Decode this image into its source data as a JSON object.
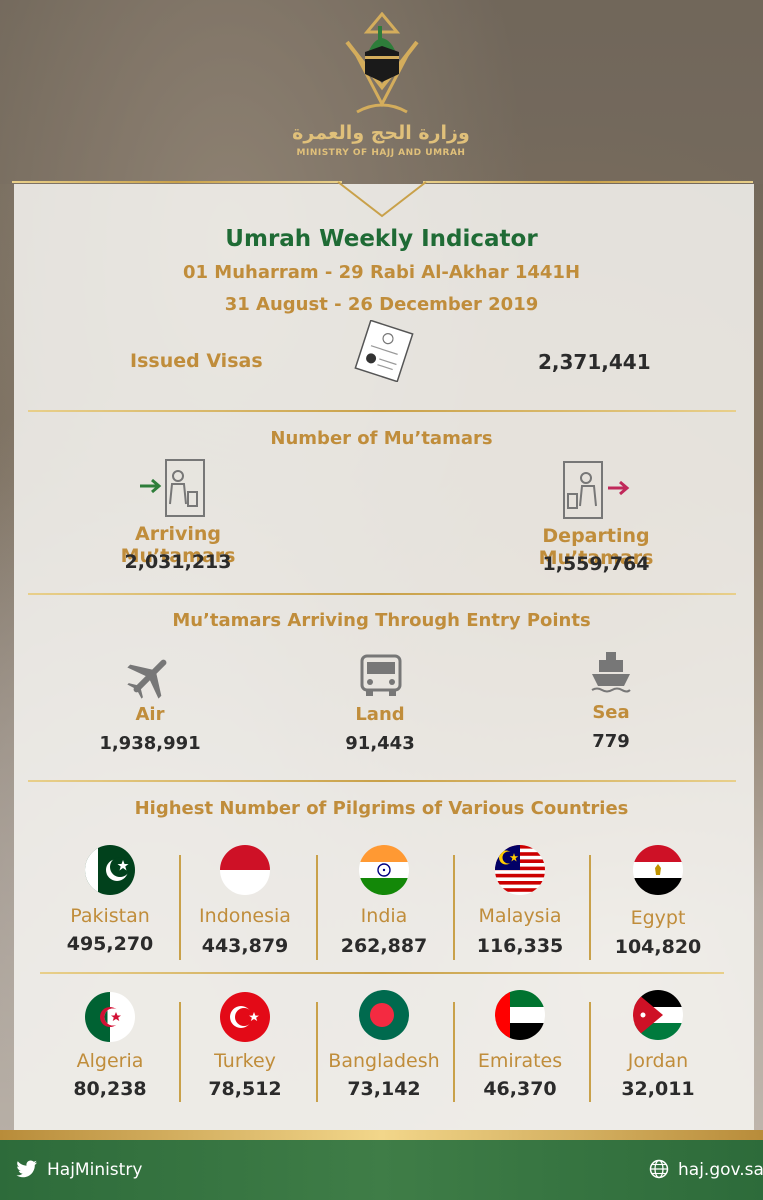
{
  "header": {
    "logo_arabic": "وزارة الحج والعمرة",
    "logo_english": "MINISTRY OF HAJJ AND UMRAH"
  },
  "report": {
    "title": "Umrah Weekly Indicator",
    "hijri_range": "01 Muharram - 29 Rabi Al-Akhar 1441H",
    "gregorian_range": "31 August - 26 December 2019"
  },
  "visas": {
    "label": "Issued Visas",
    "value": "2,371,441",
    "icon": "passport-icon"
  },
  "mutamars": {
    "heading": "Number of Mu’tamars",
    "arriving_label": "Arriving Mu’tamars",
    "arriving_value": "2,031,213",
    "departing_label": "Departing Mu’tamars",
    "departing_value": "1,559,764"
  },
  "entry_points": {
    "heading": "Mu’tamars Arriving Through Entry Points",
    "items": [
      {
        "label": "Air",
        "value": "1,938,991",
        "icon": "airplane-icon"
      },
      {
        "label": "Land",
        "value": "91,443",
        "icon": "bus-icon"
      },
      {
        "label": "Sea",
        "value": "779",
        "icon": "ship-icon"
      }
    ]
  },
  "countries": {
    "heading": "Highest Number of Pilgrims of Various Countries",
    "row1": [
      {
        "name": "Pakistan",
        "value": "495,270"
      },
      {
        "name": "Indonesia",
        "value": "443,879"
      },
      {
        "name": "India",
        "value": "262,887"
      },
      {
        "name": "Malaysia",
        "value": "116,335"
      },
      {
        "name": "Egypt",
        "value": "104,820"
      }
    ],
    "row2": [
      {
        "name": "Algeria",
        "value": "80,238"
      },
      {
        "name": "Turkey",
        "value": "78,512"
      },
      {
        "name": "Bangladesh",
        "value": "73,142"
      },
      {
        "name": "Emirates",
        "value": "46,370"
      },
      {
        "name": "Jordan",
        "value": "32,011"
      }
    ]
  },
  "footer": {
    "twitter_handle": "HajMinistry",
    "website": "haj.gov.sa"
  },
  "colors": {
    "green": "#1f6b35",
    "gold": "#c08d3b",
    "text_dark": "#2b2b2b",
    "footer_green": "#3f7d47"
  }
}
